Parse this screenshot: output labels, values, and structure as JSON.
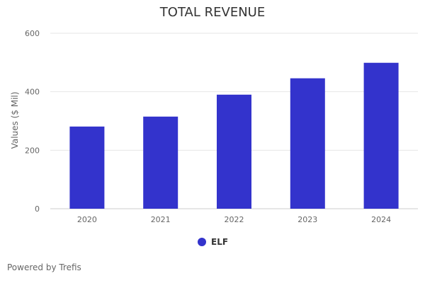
{
  "chart_data": {
    "type": "bar",
    "title": "TOTAL REVENUE",
    "xlabel": "",
    "ylabel": "Values ($ Mil)",
    "categories": [
      "2020",
      "2021",
      "2022",
      "2023",
      "2024"
    ],
    "series": [
      {
        "name": "ELF",
        "values": [
          281,
          315,
          390,
          446,
          499
        ],
        "color": "#3333cc"
      }
    ],
    "ylim": [
      0,
      600
    ],
    "yticks": [
      0,
      200,
      400,
      600
    ],
    "grid": true,
    "legend_position": "bottom-center"
  },
  "credits": "Powered by Trefis"
}
